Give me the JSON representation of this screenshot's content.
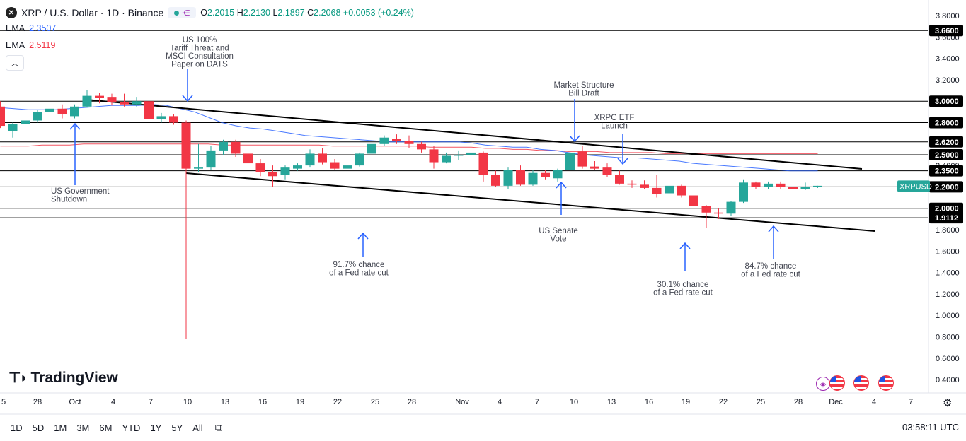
{
  "legend": {
    "symbol_icon": "close-x-icon",
    "title": "XRP / U.S. Dollar · 1D · Binance",
    "ohlc": {
      "open_label": "O",
      "open": "2.2015",
      "high_label": "H",
      "high": "2.2130",
      "low_label": "L",
      "low": "2.1897",
      "close_label": "C",
      "close": "2.2068",
      "change": "+0.0053 (+0.24%)"
    },
    "ema1": {
      "label": "EMA",
      "value": "2.3507",
      "color": "#2962ff"
    },
    "ema2": {
      "label": "EMA",
      "value": "2.5119",
      "color": "#f23645"
    }
  },
  "logo": {
    "text": "TradingView"
  },
  "colors": {
    "up": "#26a69a",
    "down": "#f23645",
    "ema_fast": "#2962ff",
    "ema_slow": "#f23645"
  },
  "price_axis": {
    "ticks": [
      "3.8000",
      "3.6000",
      "3.4000",
      "3.2000",
      "3.0000",
      "2.8000",
      "2.6000",
      "2.4000",
      "2.2000",
      "2.0000",
      "1.8000",
      "1.6000",
      "1.4000",
      "1.2000",
      "1.0000",
      "0.8000",
      "0.6000",
      "0.4000"
    ],
    "levels": [
      {
        "label": "3.6600",
        "value": 3.66
      },
      {
        "label": "3.0000",
        "value": 3.0
      },
      {
        "label": "2.8000",
        "value": 2.8
      },
      {
        "label": "2.6200",
        "value": 2.62
      },
      {
        "label": "2.5000",
        "value": 2.5
      },
      {
        "label": "2.3500",
        "value": 2.35
      },
      {
        "label": "2.2000",
        "value": 2.2
      },
      {
        "label": "2.0000",
        "value": 2.0
      },
      {
        "label": "1.9112",
        "value": 1.9112
      }
    ],
    "symbol_tag": {
      "label": "XRPUSD",
      "value": 2.2068,
      "color": "#26a69a"
    }
  },
  "time_axis": {
    "labels": [
      "5",
      "28",
      "Oct",
      "4",
      "7",
      "10",
      "13",
      "16",
      "19",
      "22",
      "25",
      "28",
      "Nov",
      "4",
      "7",
      "10",
      "13",
      "16",
      "19",
      "22",
      "25",
      "28",
      "Dec",
      "4",
      "7"
    ]
  },
  "annotations": [
    {
      "lines": [
        "US 100%",
        "Tariff Threat and",
        "MSCI Consultation",
        "Paper on DATS"
      ],
      "arrow": "down"
    },
    {
      "lines": [
        "US Government",
        "Shutdown"
      ],
      "arrow": "up"
    },
    {
      "lines": [
        "Market Structure",
        "Bill Draft"
      ],
      "arrow": "down"
    },
    {
      "lines": [
        "XRPC ETF",
        "Launch"
      ],
      "arrow": "down"
    },
    {
      "lines": [
        "US Senate",
        "Vote"
      ],
      "arrow": "up"
    },
    {
      "lines": [
        "91.7% chance",
        "of a Fed rate cut"
      ],
      "arrow": "up"
    },
    {
      "lines": [
        "30.1% chance",
        "of a Fed rate cut"
      ],
      "arrow": "up"
    },
    {
      "lines": [
        "84.7% chance",
        "of a Fed rate cut"
      ],
      "arrow": "up"
    }
  ],
  "chart_data": {
    "type": "candlestick",
    "candles": [
      {
        "o": 2.95,
        "h": 3.0,
        "l": 2.75,
        "c": 2.77
      },
      {
        "o": 2.72,
        "h": 2.8,
        "l": 2.66,
        "c": 2.79
      },
      {
        "o": 2.79,
        "h": 2.83,
        "l": 2.76,
        "c": 2.82
      },
      {
        "o": 2.82,
        "h": 2.92,
        "l": 2.8,
        "c": 2.9
      },
      {
        "o": 2.9,
        "h": 2.94,
        "l": 2.88,
        "c": 2.93
      },
      {
        "o": 2.93,
        "h": 2.97,
        "l": 2.84,
        "c": 2.88
      },
      {
        "o": 2.86,
        "h": 2.97,
        "l": 2.84,
        "c": 2.95
      },
      {
        "o": 2.95,
        "h": 3.1,
        "l": 2.94,
        "c": 3.05
      },
      {
        "o": 3.05,
        "h": 3.08,
        "l": 2.98,
        "c": 3.03
      },
      {
        "o": 3.04,
        "h": 3.07,
        "l": 2.96,
        "c": 2.99
      },
      {
        "o": 2.99,
        "h": 3.07,
        "l": 2.95,
        "c": 2.97
      },
      {
        "o": 2.97,
        "h": 3.04,
        "l": 2.95,
        "c": 3.0
      },
      {
        "o": 3.0,
        "h": 3.02,
        "l": 2.82,
        "c": 2.83
      },
      {
        "o": 2.83,
        "h": 2.89,
        "l": 2.8,
        "c": 2.86
      },
      {
        "o": 2.86,
        "h": 2.88,
        "l": 2.78,
        "c": 2.8
      },
      {
        "o": 2.8,
        "h": 2.82,
        "l": 0.78,
        "c": 2.37
      },
      {
        "o": 2.37,
        "h": 2.6,
        "l": 2.34,
        "c": 2.38
      },
      {
        "o": 2.38,
        "h": 2.58,
        "l": 2.36,
        "c": 2.54
      },
      {
        "o": 2.54,
        "h": 2.64,
        "l": 2.5,
        "c": 2.62
      },
      {
        "o": 2.62,
        "h": 2.64,
        "l": 2.48,
        "c": 2.51
      },
      {
        "o": 2.51,
        "h": 2.54,
        "l": 2.4,
        "c": 2.42
      },
      {
        "o": 2.42,
        "h": 2.46,
        "l": 2.3,
        "c": 2.34
      },
      {
        "o": 2.34,
        "h": 2.4,
        "l": 2.2,
        "c": 2.3
      },
      {
        "o": 2.31,
        "h": 2.4,
        "l": 2.27,
        "c": 2.38
      },
      {
        "o": 2.37,
        "h": 2.42,
        "l": 2.35,
        "c": 2.4
      },
      {
        "o": 2.4,
        "h": 2.55,
        "l": 2.38,
        "c": 2.51
      },
      {
        "o": 2.51,
        "h": 2.56,
        "l": 2.41,
        "c": 2.43
      },
      {
        "o": 2.43,
        "h": 2.46,
        "l": 2.36,
        "c": 2.37
      },
      {
        "o": 2.37,
        "h": 2.42,
        "l": 2.35,
        "c": 2.4
      },
      {
        "o": 2.4,
        "h": 2.52,
        "l": 2.39,
        "c": 2.51
      },
      {
        "o": 2.51,
        "h": 2.62,
        "l": 2.5,
        "c": 2.6
      },
      {
        "o": 2.6,
        "h": 2.68,
        "l": 2.58,
        "c": 2.66
      },
      {
        "o": 2.65,
        "h": 2.69,
        "l": 2.6,
        "c": 2.63
      },
      {
        "o": 2.63,
        "h": 2.68,
        "l": 2.56,
        "c": 2.6
      },
      {
        "o": 2.6,
        "h": 2.62,
        "l": 2.52,
        "c": 2.55
      },
      {
        "o": 2.55,
        "h": 2.58,
        "l": 2.37,
        "c": 2.43
      },
      {
        "o": 2.43,
        "h": 2.52,
        "l": 2.42,
        "c": 2.49
      },
      {
        "o": 2.49,
        "h": 2.54,
        "l": 2.45,
        "c": 2.5
      },
      {
        "o": 2.5,
        "h": 2.54,
        "l": 2.46,
        "c": 2.52
      },
      {
        "o": 2.52,
        "h": 2.53,
        "l": 2.25,
        "c": 2.31
      },
      {
        "o": 2.31,
        "h": 2.35,
        "l": 2.2,
        "c": 2.21
      },
      {
        "o": 2.21,
        "h": 2.38,
        "l": 2.18,
        "c": 2.36
      },
      {
        "o": 2.36,
        "h": 2.4,
        "l": 2.21,
        "c": 2.22
      },
      {
        "o": 2.22,
        "h": 2.36,
        "l": 2.21,
        "c": 2.33
      },
      {
        "o": 2.33,
        "h": 2.36,
        "l": 2.27,
        "c": 2.29
      },
      {
        "o": 2.28,
        "h": 2.37,
        "l": 2.25,
        "c": 2.36
      },
      {
        "o": 2.36,
        "h": 2.54,
        "l": 2.35,
        "c": 2.52
      },
      {
        "o": 2.53,
        "h": 2.58,
        "l": 2.37,
        "c": 2.39
      },
      {
        "o": 2.39,
        "h": 2.44,
        "l": 2.36,
        "c": 2.37
      },
      {
        "o": 2.38,
        "h": 2.42,
        "l": 2.29,
        "c": 2.31
      },
      {
        "o": 2.31,
        "h": 2.35,
        "l": 2.22,
        "c": 2.23
      },
      {
        "o": 2.23,
        "h": 2.26,
        "l": 2.19,
        "c": 2.22
      },
      {
        "o": 2.22,
        "h": 2.26,
        "l": 2.18,
        "c": 2.19
      },
      {
        "o": 2.19,
        "h": 2.31,
        "l": 2.1,
        "c": 2.13
      },
      {
        "o": 2.14,
        "h": 2.23,
        "l": 2.12,
        "c": 2.21
      },
      {
        "o": 2.21,
        "h": 2.22,
        "l": 2.1,
        "c": 2.12
      },
      {
        "o": 2.12,
        "h": 2.17,
        "l": 2.0,
        "c": 2.02
      },
      {
        "o": 2.02,
        "h": 2.03,
        "l": 1.82,
        "c": 1.96
      },
      {
        "o": 1.96,
        "h": 2.0,
        "l": 1.9,
        "c": 1.95
      },
      {
        "o": 1.95,
        "h": 2.07,
        "l": 1.93,
        "c": 2.06
      },
      {
        "o": 2.06,
        "h": 2.27,
        "l": 2.05,
        "c": 2.24
      },
      {
        "o": 2.24,
        "h": 2.25,
        "l": 2.18,
        "c": 2.2
      },
      {
        "o": 2.2,
        "h": 2.25,
        "l": 2.18,
        "c": 2.23
      },
      {
        "o": 2.23,
        "h": 2.25,
        "l": 2.18,
        "c": 2.2
      },
      {
        "o": 2.2,
        "h": 2.26,
        "l": 2.16,
        "c": 2.18
      },
      {
        "o": 2.18,
        "h": 2.24,
        "l": 2.17,
        "c": 2.2
      },
      {
        "o": 2.2,
        "h": 2.21,
        "l": 2.19,
        "c": 2.21
      }
    ],
    "ema_fast": [
      2.94,
      2.93,
      2.92,
      2.92,
      2.92,
      2.93,
      2.94,
      2.95,
      2.96,
      2.96,
      2.96,
      2.97,
      2.96,
      2.93,
      2.9,
      2.85,
      2.8,
      2.77,
      2.75,
      2.74,
      2.72,
      2.7,
      2.68,
      2.67,
      2.66,
      2.65,
      2.64,
      2.63,
      2.62,
      2.62,
      2.62,
      2.62,
      2.62,
      2.62,
      2.61,
      2.59,
      2.58,
      2.57,
      2.57,
      2.55,
      2.54,
      2.52,
      2.5,
      2.49,
      2.48,
      2.47,
      2.47,
      2.46,
      2.45,
      2.44,
      2.42,
      2.41,
      2.4,
      2.39,
      2.38,
      2.37,
      2.36,
      2.35,
      2.35,
      2.35
    ],
    "ema_slow": [
      2.58,
      2.58,
      2.58,
      2.59,
      2.59,
      2.59,
      2.6,
      2.6,
      2.6,
      2.6,
      2.6,
      2.6,
      2.6,
      2.6,
      2.6,
      2.6,
      2.59,
      2.59,
      2.59,
      2.59,
      2.59,
      2.59,
      2.59,
      2.59,
      2.58,
      2.58,
      2.58,
      2.58,
      2.58,
      2.58,
      2.58,
      2.57,
      2.57,
      2.57,
      2.57,
      2.56,
      2.56,
      2.55,
      2.55,
      2.54,
      2.54,
      2.53,
      2.53,
      2.53,
      2.52,
      2.52,
      2.52,
      2.52,
      2.51,
      2.51,
      2.51,
      2.51,
      2.51,
      2.51,
      2.51,
      2.51,
      2.51,
      2.51,
      2.51,
      2.51
    ],
    "y_range": [
      0.3,
      3.9
    ]
  },
  "bottom_bar": {
    "timeframes": [
      "1D",
      "5D",
      "1M",
      "3M",
      "6M",
      "YTD",
      "1Y",
      "5Y",
      "All"
    ],
    "range_icon": "calendar-range-icon",
    "clock": "03:58:11 UTC"
  },
  "icons": {
    "settings": "gear-icon",
    "collapse": "chevron-up-icon"
  }
}
